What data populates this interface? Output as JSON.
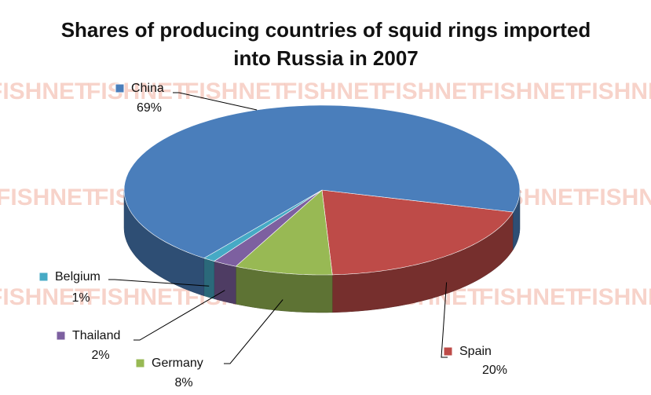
{
  "chart_data": {
    "type": "pie",
    "title": "Shares of producing countries of squid rings imported into Russia in 2007",
    "watermark": "FISHNET",
    "categories": [
      "Spain",
      "Germany",
      "Thailand",
      "Belgium",
      "China"
    ],
    "values": [
      20,
      8,
      2,
      1,
      69
    ],
    "value_labels": [
      "20%",
      "8%",
      "2%",
      "1%",
      "69%"
    ],
    "colors": [
      "#be4b48",
      "#98b954",
      "#7d60a0",
      "#46aac5",
      "#4a7ebb"
    ]
  }
}
